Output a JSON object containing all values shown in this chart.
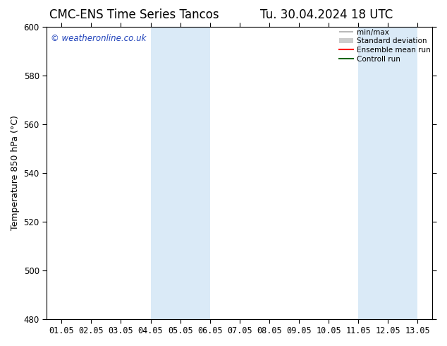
{
  "title_left": "CMC-ENS Time Series Tancos",
  "title_right": "Tu. 30.04.2024 18 UTC",
  "ylabel": "Temperature 850 hPa (°C)",
  "ylim": [
    480,
    600
  ],
  "yticks": [
    480,
    500,
    520,
    540,
    560,
    580,
    600
  ],
  "xtick_labels": [
    "01.05",
    "02.05",
    "03.05",
    "04.05",
    "05.05",
    "06.05",
    "07.05",
    "08.05",
    "09.05",
    "10.05",
    "11.05",
    "12.05",
    "13.05"
  ],
  "bg_color": "#ffffff",
  "plot_bg_color": "#ffffff",
  "shaded_regions": [
    {
      "xstart": 3,
      "xend": 5,
      "color": "#daeaf7"
    },
    {
      "xstart": 10,
      "xend": 12,
      "color": "#daeaf7"
    }
  ],
  "watermark_text": "© weatheronline.co.uk",
  "watermark_color": "#2244bb",
  "legend_entries": [
    {
      "label": "min/max",
      "color": "#aaaaaa",
      "lw": 1.2
    },
    {
      "label": "Standard deviation",
      "color": "#cccccc",
      "lw": 6
    },
    {
      "label": "Ensemble mean run",
      "color": "#ff0000",
      "lw": 1.5
    },
    {
      "label": "Controll run",
      "color": "#006600",
      "lw": 1.5
    }
  ],
  "spine_color": "#000000",
  "tick_color": "#000000",
  "title_fontsize": 12,
  "label_fontsize": 9,
  "tick_fontsize": 8.5,
  "legend_fontsize": 7.5
}
